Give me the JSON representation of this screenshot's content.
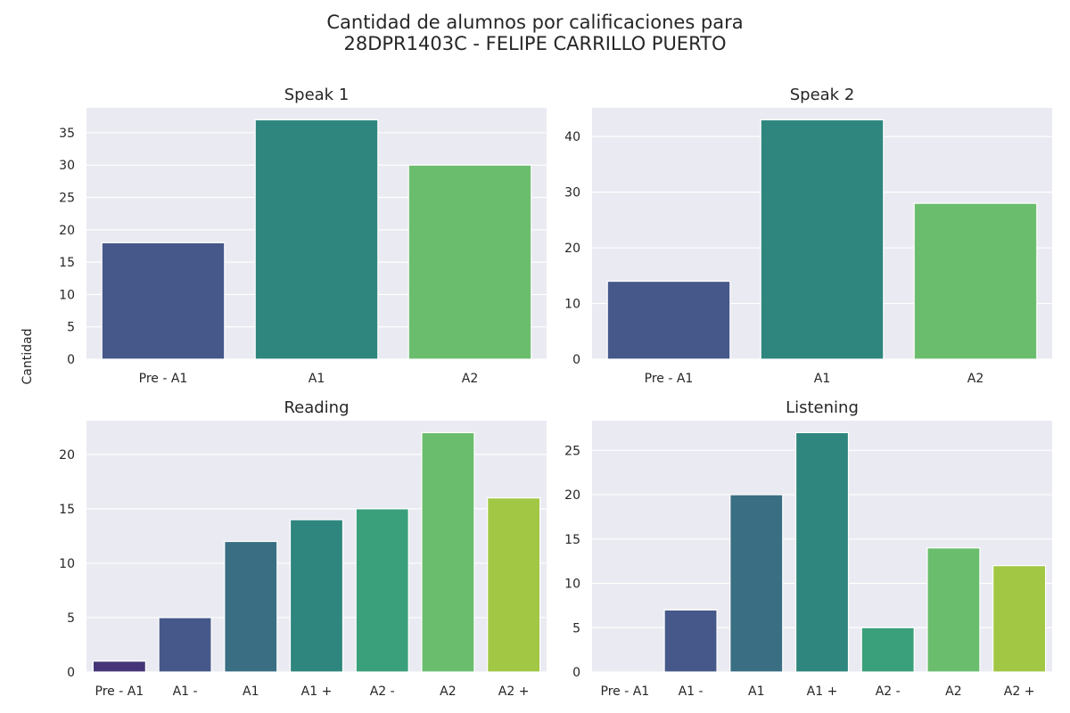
{
  "figure": {
    "title_line1": "Cantidad de alumnos por calificaciones para",
    "title_line2": "28DPR1403C - FELIPE CARRILLO PUERTO",
    "ylabel": "Cantidad"
  },
  "chart_data": [
    {
      "type": "bar",
      "title": "Speak 1",
      "categories": [
        "Pre - A1",
        "A1",
        "A2"
      ],
      "values": [
        18,
        37,
        30
      ],
      "colors": [
        "#46588a",
        "#2e867e",
        "#6bbd6e"
      ],
      "ylim": [
        0,
        38.85
      ],
      "yticks": [
        0,
        5,
        10,
        15,
        20,
        25,
        30,
        35
      ],
      "grid": true
    },
    {
      "type": "bar",
      "title": "Speak 2",
      "categories": [
        "Pre - A1",
        "A1",
        "A2"
      ],
      "values": [
        14,
        43,
        28
      ],
      "colors": [
        "#46588a",
        "#2e867e",
        "#6bbd6e"
      ],
      "ylim": [
        0,
        45.15
      ],
      "yticks": [
        0,
        10,
        20,
        30,
        40
      ],
      "grid": true
    },
    {
      "type": "bar",
      "title": "Reading",
      "categories": [
        "Pre - A1",
        "A1 -",
        "A1",
        "A1 +",
        "A2 -",
        "A2",
        "A2 +"
      ],
      "values": [
        1,
        5,
        12,
        14,
        15,
        22,
        16
      ],
      "colors": [
        "#453578",
        "#46588a",
        "#396e83",
        "#2e867e",
        "#3a9f7b",
        "#6bbd6e",
        "#a1c745"
      ],
      "ylim": [
        0,
        23.1
      ],
      "yticks": [
        0,
        5,
        10,
        15,
        20
      ],
      "grid": true
    },
    {
      "type": "bar",
      "title": "Listening",
      "categories": [
        "Pre - A1",
        "A1 -",
        "A1",
        "A1 +",
        "A2 -",
        "A2",
        "A2 +"
      ],
      "values": [
        0,
        7,
        20,
        27,
        5,
        14,
        12
      ],
      "colors": [
        "#453578",
        "#46588a",
        "#396e83",
        "#2e867e",
        "#3a9f7b",
        "#6bbd6e",
        "#a1c745"
      ],
      "ylim": [
        0,
        28.35
      ],
      "yticks": [
        0,
        5,
        10,
        15,
        20,
        25
      ],
      "grid": true
    }
  ]
}
